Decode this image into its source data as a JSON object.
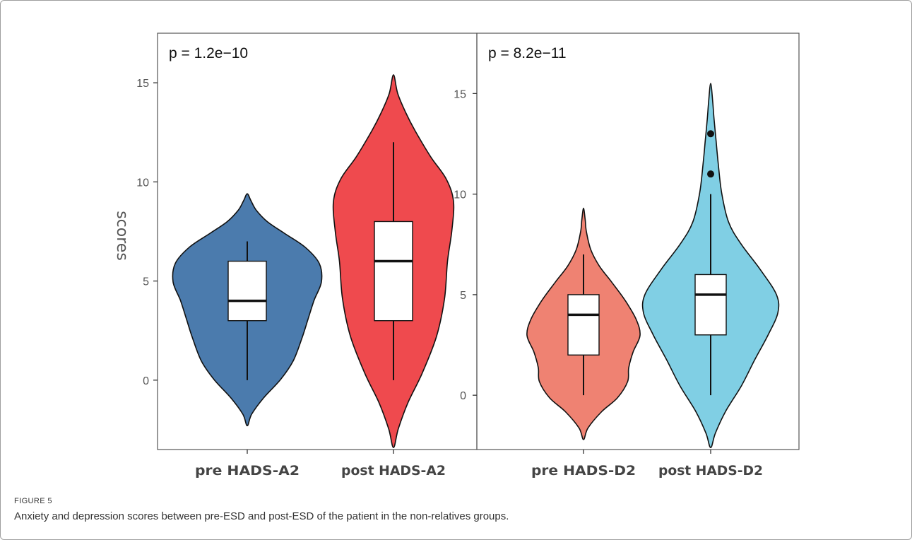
{
  "figure": {
    "label": "FIGURE 5",
    "caption": "Anxiety and depression scores between pre-ESD and post-ESD of the patient in the non-relatives groups."
  },
  "chart_data": [
    {
      "type": "violin",
      "ylabel": "scores",
      "ylim": [
        -3.5,
        17.5
      ],
      "yticks": [
        0,
        5,
        10,
        15
      ],
      "annotation": "p = 1.2e−10",
      "categories": [
        "pre HADS-A2",
        "post HADS-A2"
      ],
      "series": [
        {
          "category": "pre HADS-A2",
          "color": "#4b7bad",
          "box": {
            "min": 0,
            "q1": 3,
            "median": 4,
            "q3": 6,
            "max": 7
          },
          "outliers": [],
          "range": [
            -2.3,
            9.4
          ]
        },
        {
          "category": "post HADS-A2",
          "color": "#ef4a4e",
          "box": {
            "min": 0,
            "q1": 3,
            "median": 6,
            "q3": 8,
            "max": 12
          },
          "outliers": [],
          "range": [
            -3.4,
            15.4
          ]
        }
      ]
    },
    {
      "type": "violin",
      "ylim": [
        -2.7,
        18.0
      ],
      "yticks": [
        0,
        5,
        10,
        15
      ],
      "annotation": "p = 8.2e−11",
      "categories": [
        "pre HADS-D2",
        "post HADS-D2"
      ],
      "series": [
        {
          "category": "pre HADS-D2",
          "color": "#ef8272",
          "box": {
            "min": 0,
            "q1": 2,
            "median": 4,
            "q3": 5,
            "max": 7
          },
          "outliers": [],
          "range": [
            -2.2,
            9.3
          ]
        },
        {
          "category": "post HADS-D2",
          "color": "#80cfe4",
          "box": {
            "min": 0,
            "q1": 3,
            "median": 5,
            "q3": 6,
            "max": 10
          },
          "outliers": [
            11,
            13
          ],
          "range": [
            -2.6,
            15.5
          ]
        }
      ]
    }
  ]
}
